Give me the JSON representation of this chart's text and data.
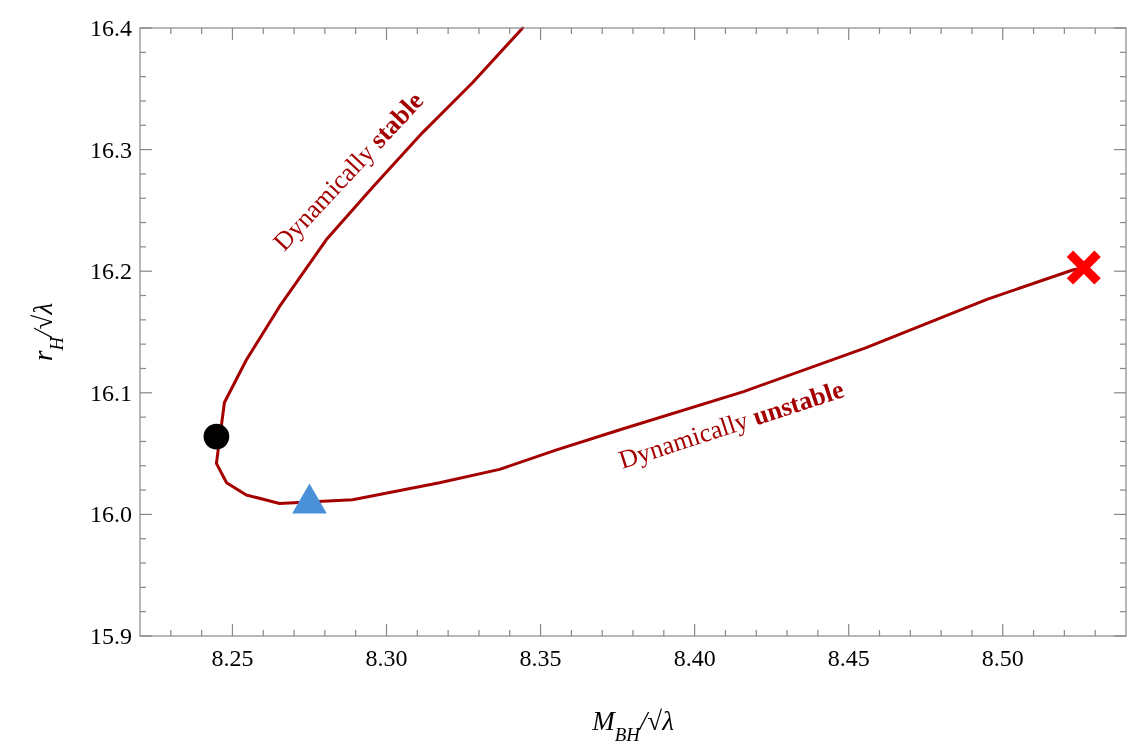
{
  "chart_data": {
    "type": "line",
    "xlabel": "M$_{BH}$/√λ",
    "ylabel": "r$_{H}$/√λ",
    "xlim": [
      8.22,
      8.54
    ],
    "ylim": [
      15.9,
      16.4
    ],
    "xticks": [
      {
        "value": 8.25,
        "label": "8.25"
      },
      {
        "value": 8.3,
        "label": "8.30"
      },
      {
        "value": 8.35,
        "label": "8.35"
      },
      {
        "value": 8.4,
        "label": "8.40"
      },
      {
        "value": 8.45,
        "label": "8.45"
      },
      {
        "value": 8.5,
        "label": "8.50"
      }
    ],
    "yticks": [
      {
        "value": 15.9,
        "label": "15.9"
      },
      {
        "value": 16.0,
        "label": "16.0"
      },
      {
        "value": 16.1,
        "label": "16.1"
      },
      {
        "value": 16.2,
        "label": "16.2"
      },
      {
        "value": 16.3,
        "label": "16.3"
      },
      {
        "value": 16.4,
        "label": "16.4"
      }
    ],
    "grid": false,
    "series": [
      {
        "color": "#a50000",
        "marker": "none",
        "line_style": "solid",
        "x": [
          8.3442,
          8.3279,
          8.3117,
          8.2955,
          8.2805,
          8.2653,
          8.2545,
          8.2474,
          8.2448,
          8.2481,
          8.2545,
          8.2653,
          8.289,
          8.3172,
          8.3367,
          8.3552,
          8.3763,
          8.4159,
          8.4555,
          8.4951,
          8.5227,
          8.5263
        ],
        "values": [
          16.4,
          16.355,
          16.314,
          16.269,
          16.226,
          16.171,
          16.127,
          16.092,
          16.042,
          16.026,
          16.016,
          16.009,
          16.012,
          16.026,
          16.037,
          16.053,
          16.07,
          16.101,
          16.137,
          16.177,
          16.201,
          16.203
        ]
      },
      {
        "type": "scatter",
        "color": "#000000",
        "marker": "circle",
        "x": [
          8.2448
        ],
        "values": [
          16.064
        ]
      },
      {
        "type": "scatter",
        "color": "#4a90d9",
        "marker": "triangle",
        "x": [
          8.275
        ],
        "values": [
          16.009
        ]
      },
      {
        "type": "scatter",
        "color": "#ff0000",
        "marker": "cross",
        "x": [
          8.5263
        ],
        "values": [
          16.203
        ]
      }
    ],
    "annotations": [
      "Dynamically stable",
      "Dynamically unstable"
    ]
  }
}
